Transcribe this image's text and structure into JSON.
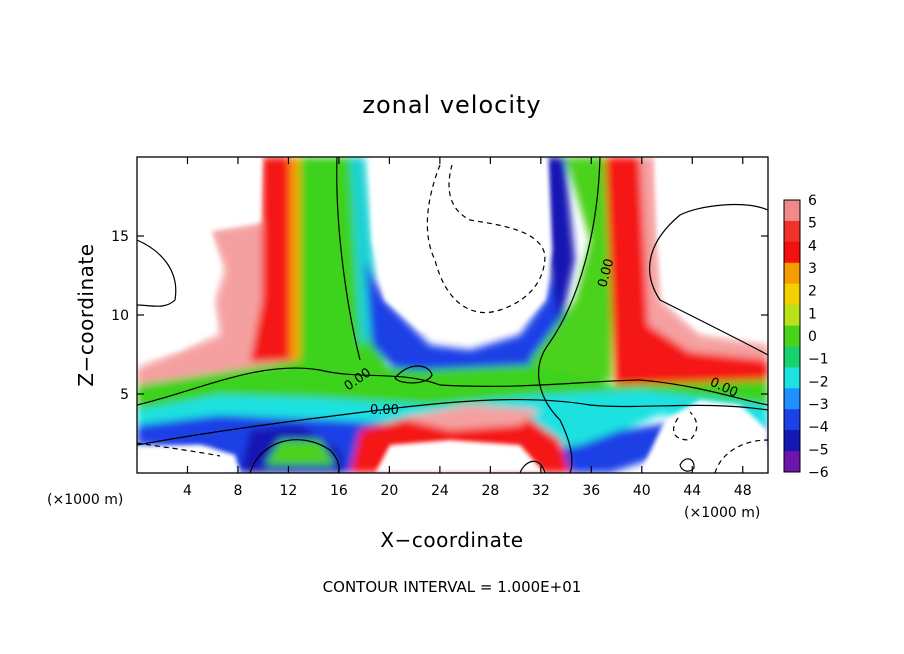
{
  "chart_data": {
    "type": "heatmap",
    "title": "zonal velocity",
    "xlabel": "X−coordinate",
    "ylabel": "Z−coordinate",
    "x_unit_left": "(×1000 m)",
    "x_unit_right": "(×1000 m)",
    "xlim": [
      0,
      50
    ],
    "ylim": [
      0,
      20
    ],
    "xticks": [
      4,
      8,
      12,
      16,
      20,
      24,
      28,
      32,
      36,
      40,
      44,
      48
    ],
    "yticks": [
      5,
      10,
      15
    ],
    "colorbar": {
      "levels": [
        6,
        5,
        4,
        3,
        2,
        1,
        0,
        -1,
        -2,
        -3,
        -4,
        -5,
        -6
      ],
      "level_labels": [
        "6",
        "5",
        "4",
        "3",
        "2",
        "1",
        "0",
        "−1",
        "−2",
        "−3",
        "−4",
        "−5",
        "−6"
      ],
      "colors": [
        "#f08a8a",
        "#f03228",
        "#f51010",
        "#f59d00",
        "#f5d000",
        "#b9e21b",
        "#4bd21b",
        "#19d26e",
        "#1ee1e1",
        "#1e90ff",
        "#1c41e6",
        "#1418b4",
        "#6e14aa"
      ]
    },
    "contour_labels": [
      "0.00",
      "0.00",
      "0.00",
      "0.00"
    ],
    "footnote": "CONTOUR INTERVAL = 1.000E+01",
    "grid": false
  }
}
